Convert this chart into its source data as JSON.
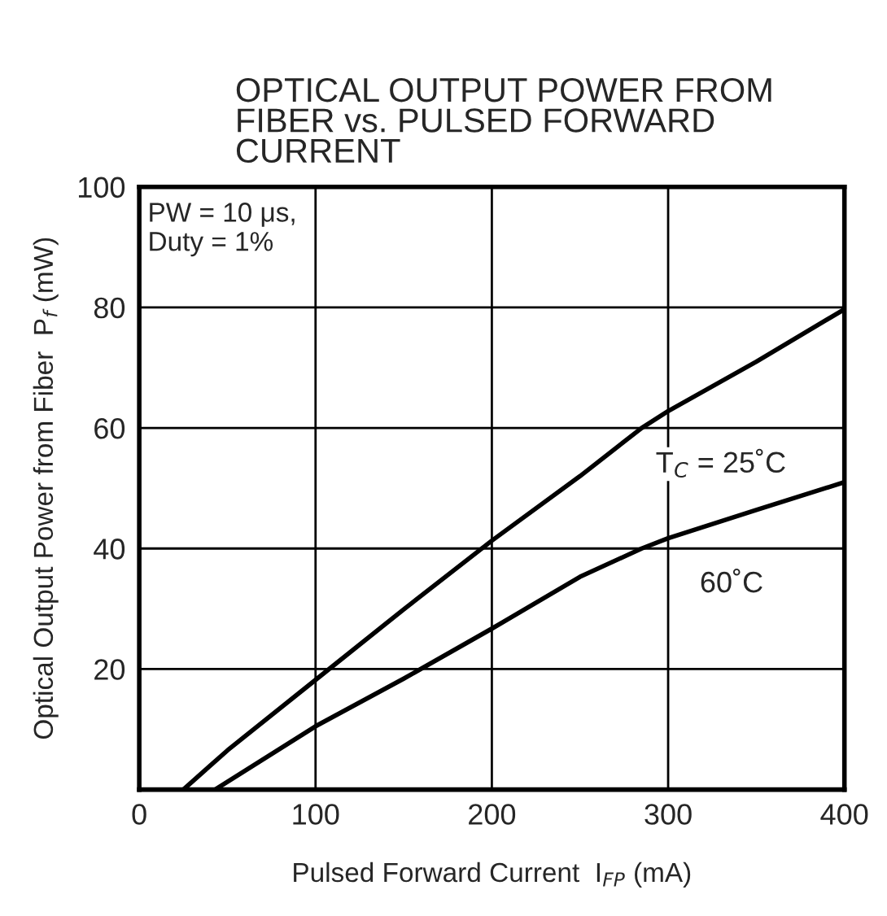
{
  "chart_data": {
    "type": "line",
    "title": "OPTICAL OUTPUT POWER FROM\nFIBER vs. PULSED FORWARD\nCURRENT",
    "xlabel": "Pulsed Forward Current  I$_{FP}$ (mA)",
    "ylabel": "Optical Output Power from Fiber  P$_{f}$ (mW)",
    "series": [
      {
        "color": "#000000",
        "x": [
          25,
          50,
          100,
          150,
          200,
          250,
          285,
          300,
          350,
          400
        ],
        "values": [
          0,
          6.5,
          18.2,
          29.9,
          41.3,
          52,
          60,
          62.8,
          71,
          79.7
        ]
      },
      {
        "color": "#000000",
        "x": [
          43,
          100,
          150,
          200,
          250,
          285,
          300,
          350,
          400
        ],
        "values": [
          0,
          10.5,
          18.4,
          26.7,
          35.3,
          40,
          41.7,
          46.4,
          51
        ]
      }
    ],
    "annotations": [
      "PW = 10 μs,\nDuty = 1%",
      "T$_{C}$ = 25˚C",
      "60˚C"
    ],
    "xlim": [
      0,
      400
    ],
    "xticks": [
      0,
      100,
      200,
      300,
      400
    ],
    "ylim": [
      0,
      100
    ],
    "yticks": [
      {
        "value": 0,
        "label": null
      },
      20,
      40,
      60,
      80,
      100
    ],
    "grid": true,
    "line_style": "solid",
    "marker": "none",
    "legend": false
  }
}
